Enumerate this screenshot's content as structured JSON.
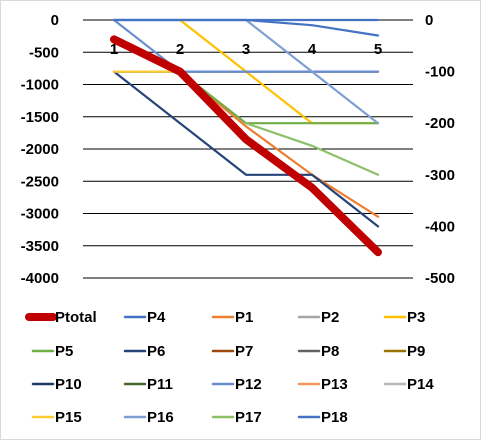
{
  "chart_data": {
    "type": "line",
    "x": [
      1,
      2,
      3,
      4,
      5
    ],
    "y_left": {
      "ylim": [
        -4000,
        0
      ],
      "ticks": [
        0,
        -500,
        -1000,
        -1500,
        -2000,
        -2500,
        -3000,
        -3500,
        -4000
      ]
    },
    "y_right": {
      "ylim": [
        -500,
        0
      ],
      "ticks": [
        0,
        -100,
        -200,
        -300,
        -400,
        -500
      ]
    },
    "grid": true,
    "legend_position": "bottom",
    "series": [
      {
        "name": "Ptotal",
        "axis": "left",
        "color": "#c00000",
        "values": [
          -300,
          -800,
          -1850,
          -2600,
          -3600
        ]
      },
      {
        "name": "P4",
        "axis": "right",
        "color": "#4472c4",
        "values": [
          0,
          0,
          0,
          -10,
          -30
        ]
      },
      {
        "name": "P1",
        "axis": "left",
        "color": "#ed7d31",
        "values": [
          null,
          -800,
          -1650,
          -2400,
          -3050
        ]
      },
      {
        "name": "P2",
        "axis": "right",
        "color": "#a5a5a5",
        "values": [
          -100,
          -100,
          -100,
          -100,
          -100
        ]
      },
      {
        "name": "P3",
        "axis": "right",
        "color": "#ffc000",
        "values": [
          null,
          0,
          -100,
          -200,
          -200
        ]
      },
      {
        "name": "P5",
        "axis": "left",
        "color": "#70ad47",
        "values": [
          null,
          -800,
          -1600,
          -1600,
          -1600
        ]
      },
      {
        "name": "P6",
        "axis": "left",
        "color": "#264478",
        "values": [
          -800,
          -1600,
          -2400,
          -2400,
          -3200
        ]
      },
      {
        "name": "P7",
        "axis": "left",
        "color": "#9e480e",
        "values": [
          null,
          null,
          null,
          null,
          null
        ]
      },
      {
        "name": "P8",
        "axis": "right",
        "color": "#636363",
        "values": [
          -100,
          -100,
          -100,
          -100,
          -100
        ]
      },
      {
        "name": "P9",
        "axis": "left",
        "color": "#997300",
        "values": [
          null,
          null,
          null,
          null,
          null
        ]
      },
      {
        "name": "P10",
        "axis": "left",
        "color": "#203864",
        "values": [
          null,
          null,
          null,
          null,
          null
        ]
      },
      {
        "name": "P11",
        "axis": "left",
        "color": "#43682b",
        "values": [
          null,
          null,
          null,
          null,
          null
        ]
      },
      {
        "name": "P12",
        "axis": "right",
        "color": "#698ed0",
        "values": [
          0,
          -100,
          -100,
          -100,
          -100
        ]
      },
      {
        "name": "P13",
        "axis": "left",
        "color": "#f1975a",
        "values": [
          null,
          null,
          null,
          null,
          null
        ]
      },
      {
        "name": "P14",
        "axis": "left",
        "color": "#b7b7b7",
        "values": [
          null,
          null,
          null,
          null,
          null
        ]
      },
      {
        "name": "P15",
        "axis": "left",
        "color": "#ffcd33",
        "values": [
          -800,
          -800,
          null,
          null,
          null
        ]
      },
      {
        "name": "P16",
        "axis": "right",
        "color": "#7f9fd3",
        "values": [
          null,
          null,
          0,
          -100,
          -200
        ]
      },
      {
        "name": "P17",
        "axis": "left",
        "color": "#8cc168",
        "values": [
          null,
          null,
          -1600,
          -1950,
          -2400
        ]
      },
      {
        "name": "P18",
        "axis": "right",
        "color": "#4472c4",
        "values": [
          0,
          0,
          0,
          0,
          0
        ]
      }
    ]
  }
}
